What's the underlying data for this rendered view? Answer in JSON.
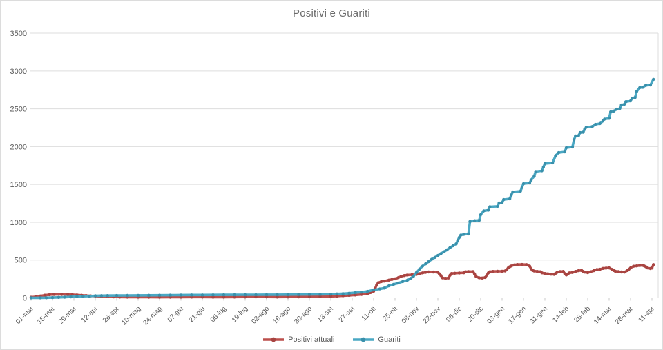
{
  "chart_data": {
    "type": "line",
    "title": "Positivi e Guariti",
    "xlabel": "",
    "ylabel": "",
    "ylim": [
      0,
      3500
    ],
    "y_ticks": [
      0,
      500,
      1000,
      1500,
      2000,
      2500,
      3000,
      3500
    ],
    "grid": "horizontal",
    "legend_position": "bottom-center",
    "x_tick_interval_days": 14,
    "x_range_days": 407,
    "x_tick_labels": [
      "01-mar",
      "15-mar",
      "29-mar",
      "12-apr",
      "26-apr",
      "10-mag",
      "24-mag",
      "07-giu",
      "21-giu",
      "05-lug",
      "19-lug",
      "02-ago",
      "16-ago",
      "30-ago",
      "13-set",
      "27-set",
      "11-ott",
      "25-ott",
      "08-nov",
      "22-nov",
      "06-dic",
      "20-dic",
      "03-gen",
      "17-gen",
      "31-gen",
      "14-feb",
      "28-feb",
      "14-mar",
      "28-mar",
      "11-apr"
    ],
    "style": {
      "background": "#ffffff",
      "frame_border": "#dcdcdc",
      "grid": "#dddddd",
      "axis_line": "#c8c8c8",
      "tick_text": "#595959",
      "title_text": "#6b6b6b",
      "legend_text": "#595959"
    },
    "series": [
      {
        "name": "Positivi attuali",
        "color": "#bc4f4c",
        "marker_color": "#a84441",
        "points": [
          [
            0,
            8
          ],
          [
            3,
            15
          ],
          [
            6,
            25
          ],
          [
            9,
            35
          ],
          [
            12,
            42
          ],
          [
            15,
            45
          ],
          [
            20,
            46
          ],
          [
            24,
            45
          ],
          [
            27,
            42
          ],
          [
            30,
            38
          ],
          [
            33,
            34
          ],
          [
            36,
            30
          ],
          [
            39,
            26
          ],
          [
            42,
            23
          ],
          [
            46,
            19
          ],
          [
            50,
            16
          ],
          [
            54,
            13
          ],
          [
            58,
            11
          ],
          [
            63,
            10
          ],
          [
            70,
            9
          ],
          [
            77,
            9
          ],
          [
            84,
            8
          ],
          [
            91,
            9
          ],
          [
            98,
            10
          ],
          [
            105,
            11
          ],
          [
            112,
            11
          ],
          [
            119,
            10
          ],
          [
            126,
            10
          ],
          [
            133,
            11
          ],
          [
            140,
            12
          ],
          [
            147,
            13
          ],
          [
            154,
            12
          ],
          [
            161,
            11
          ],
          [
            168,
            12
          ],
          [
            175,
            13
          ],
          [
            182,
            15
          ],
          [
            189,
            17
          ],
          [
            196,
            20
          ],
          [
            200,
            24
          ],
          [
            204,
            28
          ],
          [
            208,
            33
          ],
          [
            212,
            38
          ],
          [
            216,
            45
          ],
          [
            220,
            55
          ],
          [
            222,
            70
          ],
          [
            224,
            88
          ],
          [
            225,
            125
          ],
          [
            226,
            170
          ],
          [
            227,
            200
          ],
          [
            229,
            215
          ],
          [
            231,
            222
          ],
          [
            234,
            235
          ],
          [
            236,
            245
          ],
          [
            238,
            252
          ],
          [
            240,
            265
          ],
          [
            242,
            285
          ],
          [
            244,
            295
          ],
          [
            246,
            302
          ],
          [
            249,
            306
          ],
          [
            252,
            310
          ],
          [
            254,
            320
          ],
          [
            256,
            330
          ],
          [
            258,
            338
          ],
          [
            260,
            342
          ],
          [
            263,
            341
          ],
          [
            266,
            338
          ],
          [
            267,
            318
          ],
          [
            268,
            295
          ],
          [
            269,
            265
          ],
          [
            271,
            258
          ],
          [
            273,
            263
          ],
          [
            274,
            300
          ],
          [
            275,
            322
          ],
          [
            277,
            326
          ],
          [
            280,
            329
          ],
          [
            283,
            331
          ],
          [
            284,
            345
          ],
          [
            286,
            348
          ],
          [
            289,
            348
          ],
          [
            290,
            318
          ],
          [
            291,
            280
          ],
          [
            293,
            265
          ],
          [
            295,
            262
          ],
          [
            297,
            270
          ],
          [
            298,
            300
          ],
          [
            299,
            330
          ],
          [
            300,
            345
          ],
          [
            302,
            350
          ],
          [
            305,
            351
          ],
          [
            308,
            352
          ],
          [
            310,
            356
          ],
          [
            311,
            372
          ],
          [
            312,
            396
          ],
          [
            313,
            412
          ],
          [
            314,
            422
          ],
          [
            316,
            435
          ],
          [
            318,
            441
          ],
          [
            321,
            442
          ],
          [
            324,
            440
          ],
          [
            326,
            420
          ],
          [
            327,
            382
          ],
          [
            328,
            362
          ],
          [
            329,
            355
          ],
          [
            331,
            350
          ],
          [
            333,
            345
          ],
          [
            334,
            331
          ],
          [
            336,
            322
          ],
          [
            338,
            318
          ],
          [
            340,
            313
          ],
          [
            342,
            310
          ],
          [
            343,
            325
          ],
          [
            344,
            338
          ],
          [
            346,
            348
          ],
          [
            348,
            350
          ],
          [
            349,
            320
          ],
          [
            350,
            303
          ],
          [
            351,
            315
          ],
          [
            352,
            330
          ],
          [
            354,
            336
          ],
          [
            356,
            350
          ],
          [
            358,
            360
          ],
          [
            360,
            362
          ],
          [
            361,
            350
          ],
          [
            362,
            340
          ],
          [
            364,
            333
          ],
          [
            366,
            345
          ],
          [
            368,
            360
          ],
          [
            370,
            374
          ],
          [
            372,
            378
          ],
          [
            374,
            390
          ],
          [
            376,
            394
          ],
          [
            378,
            396
          ],
          [
            380,
            376
          ],
          [
            381,
            362
          ],
          [
            382,
            352
          ],
          [
            384,
            348
          ],
          [
            386,
            342
          ],
          [
            388,
            340
          ],
          [
            390,
            362
          ],
          [
            391,
            380
          ],
          [
            392,
            396
          ],
          [
            394,
            418
          ],
          [
            396,
            423
          ],
          [
            398,
            428
          ],
          [
            400,
            430
          ],
          [
            401,
            422
          ],
          [
            402,
            412
          ],
          [
            403,
            396
          ],
          [
            405,
            388
          ],
          [
            406,
            394
          ],
          [
            407,
            440
          ]
        ]
      },
      {
        "name": "Guariti",
        "color": "#4aa8c4",
        "marker_color": "#3a90ab",
        "points": [
          [
            0,
            0
          ],
          [
            6,
            1
          ],
          [
            10,
            2
          ],
          [
            14,
            4
          ],
          [
            18,
            6
          ],
          [
            22,
            9
          ],
          [
            26,
            13
          ],
          [
            30,
            17
          ],
          [
            34,
            21
          ],
          [
            38,
            24
          ],
          [
            42,
            27
          ],
          [
            46,
            29
          ],
          [
            50,
            30
          ],
          [
            56,
            31
          ],
          [
            63,
            32
          ],
          [
            70,
            33
          ],
          [
            77,
            34
          ],
          [
            84,
            35
          ],
          [
            91,
            36
          ],
          [
            98,
            37
          ],
          [
            105,
            38
          ],
          [
            112,
            38
          ],
          [
            119,
            39
          ],
          [
            126,
            40
          ],
          [
            133,
            40
          ],
          [
            140,
            41
          ],
          [
            147,
            41
          ],
          [
            154,
            42
          ],
          [
            161,
            42
          ],
          [
            168,
            43
          ],
          [
            175,
            44
          ],
          [
            182,
            45
          ],
          [
            189,
            46
          ],
          [
            196,
            48
          ],
          [
            200,
            52
          ],
          [
            204,
            56
          ],
          [
            208,
            61
          ],
          [
            212,
            68
          ],
          [
            216,
            76
          ],
          [
            220,
            86
          ],
          [
            224,
            105
          ],
          [
            228,
            118
          ],
          [
            231,
            130
          ],
          [
            234,
            160
          ],
          [
            237,
            178
          ],
          [
            240,
            195
          ],
          [
            243,
            215
          ],
          [
            246,
            232
          ],
          [
            248,
            255
          ],
          [
            250,
            285
          ],
          [
            252,
            335
          ],
          [
            254,
            380
          ],
          [
            256,
            420
          ],
          [
            258,
            450
          ],
          [
            260,
            480
          ],
          [
            262,
            510
          ],
          [
            264,
            535
          ],
          [
            266,
            560
          ],
          [
            268,
            585
          ],
          [
            270,
            610
          ],
          [
            272,
            635
          ],
          [
            274,
            665
          ],
          [
            276,
            690
          ],
          [
            278,
            715
          ],
          [
            279,
            760
          ],
          [
            280,
            800
          ],
          [
            281,
            830
          ],
          [
            283,
            840
          ],
          [
            286,
            845
          ],
          [
            287,
            1010
          ],
          [
            290,
            1020
          ],
          [
            293,
            1025
          ],
          [
            294,
            1100
          ],
          [
            296,
            1150
          ],
          [
            299,
            1160
          ],
          [
            300,
            1205
          ],
          [
            305,
            1210
          ],
          [
            306,
            1255
          ],
          [
            308,
            1260
          ],
          [
            309,
            1300
          ],
          [
            313,
            1310
          ],
          [
            314,
            1360
          ],
          [
            315,
            1400
          ],
          [
            320,
            1410
          ],
          [
            321,
            1460
          ],
          [
            322,
            1510
          ],
          [
            326,
            1520
          ],
          [
            327,
            1560
          ],
          [
            329,
            1610
          ],
          [
            330,
            1670
          ],
          [
            334,
            1680
          ],
          [
            335,
            1730
          ],
          [
            336,
            1775
          ],
          [
            341,
            1785
          ],
          [
            343,
            1880
          ],
          [
            345,
            1920
          ],
          [
            349,
            1930
          ],
          [
            350,
            1985
          ],
          [
            354,
            1995
          ],
          [
            355,
            2090
          ],
          [
            356,
            2140
          ],
          [
            358,
            2145
          ],
          [
            359,
            2185
          ],
          [
            361,
            2190
          ],
          [
            362,
            2230
          ],
          [
            363,
            2255
          ],
          [
            367,
            2265
          ],
          [
            369,
            2295
          ],
          [
            372,
            2305
          ],
          [
            374,
            2340
          ],
          [
            375,
            2365
          ],
          [
            378,
            2375
          ],
          [
            379,
            2460
          ],
          [
            381,
            2470
          ],
          [
            383,
            2495
          ],
          [
            385,
            2505
          ],
          [
            386,
            2550
          ],
          [
            388,
            2560
          ],
          [
            389,
            2595
          ],
          [
            392,
            2605
          ],
          [
            393,
            2640
          ],
          [
            395,
            2650
          ],
          [
            396,
            2730
          ],
          [
            398,
            2780
          ],
          [
            400,
            2785
          ],
          [
            402,
            2810
          ],
          [
            405,
            2815
          ],
          [
            407,
            2890
          ]
        ]
      }
    ]
  }
}
